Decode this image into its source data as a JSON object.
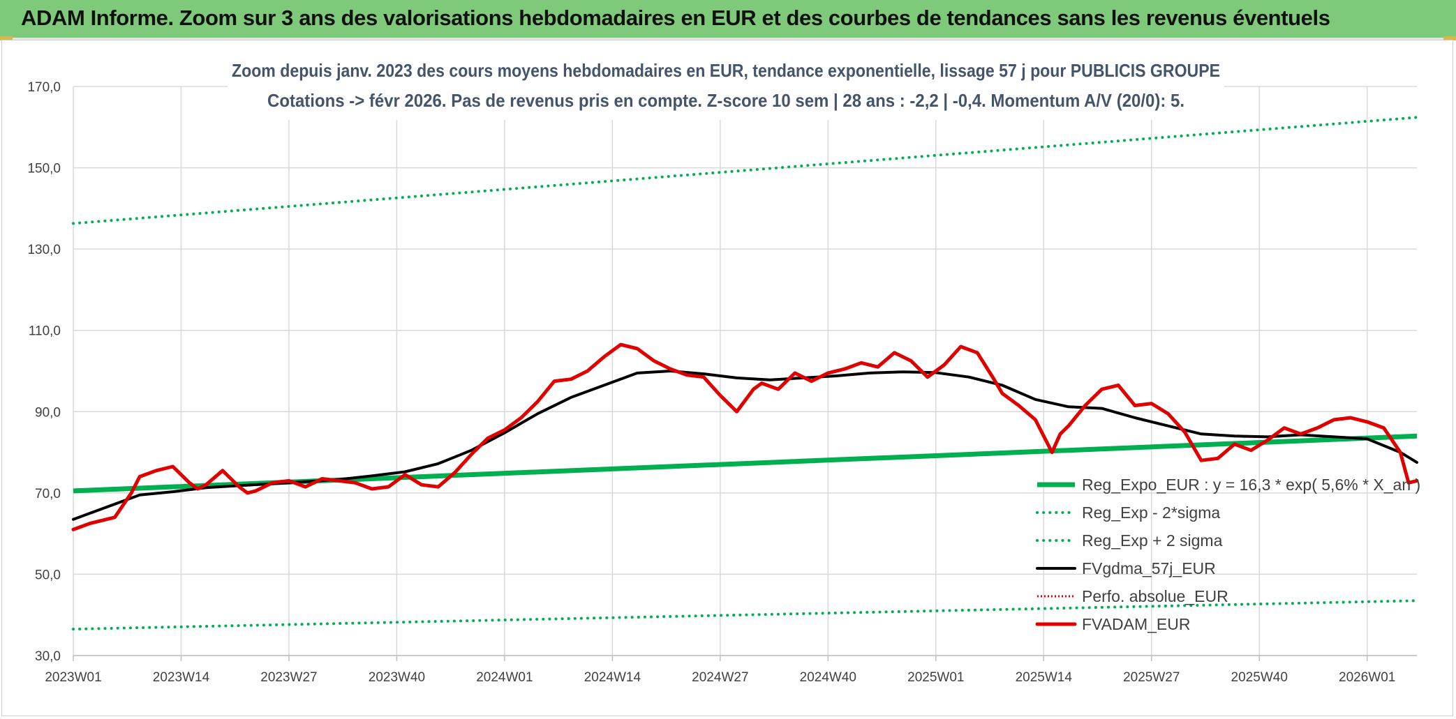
{
  "header": {
    "title": "ADAM Informe. Zoom sur 3 ans des valorisations hebdomadaires en EUR et des courbes de tendances sans les revenus éventuels"
  },
  "colors": {
    "header_bg": "#7fc97a",
    "regression": "#00b050",
    "sigma": "#00b050",
    "gdma": "#000000",
    "perfo": "#e00000",
    "adam": "#e00000",
    "grid": "#d9d9d9",
    "axis_text": "#404040"
  },
  "chart_data": {
    "type": "line",
    "title_line1": "Zoom depuis janv. 2023 des cours moyens hebdomadaires en EUR, tendance exponentielle, lissage 57 j pour PUBLICIS GROUPE",
    "title_line2": "Cotations -> févr 2026. Pas de revenus pris en compte. Z-score 10 sem | 28 ans : -2,2 | -0,4. Momentum A/V (20/0): 5.",
    "xlabel": "",
    "ylabel": "",
    "ylim": [
      30,
      170
    ],
    "yticks": [
      30,
      50,
      70,
      90,
      110,
      130,
      150,
      170
    ],
    "ytick_labels": [
      "30,0",
      "50,0",
      "70,0",
      "90,0",
      "110,0",
      "130,0",
      "150,0",
      "170,0"
    ],
    "xlim": [
      0,
      162
    ],
    "xticks": [
      0,
      13,
      26,
      39,
      52,
      65,
      78,
      91,
      104,
      117,
      130,
      143,
      156
    ],
    "xtick_labels": [
      "2023W01",
      "2023W14",
      "2023W27",
      "2023W40",
      "2024W01",
      "2024W14",
      "2024W27",
      "2024W40",
      "2025W01",
      "2025W14",
      "2025W27",
      "2025W40",
      "2026W01"
    ],
    "grid": true,
    "legend_position": "bottom-right",
    "series": [
      {
        "name": "Reg_Expo_EUR : y = 16,3 * exp( 5,6% *  X_an )",
        "style": "solid-thick",
        "x": [
          0,
          162
        ],
        "values": [
          70.5,
          84.0
        ]
      },
      {
        "name": "Reg_Exp - 2*sigma",
        "style": "dotted",
        "x": [
          0,
          162
        ],
        "values": [
          36.5,
          43.5
        ]
      },
      {
        "name": "Reg_Exp + 2 sigma",
        "style": "dotted",
        "x": [
          0,
          162
        ],
        "values": [
          136.3,
          162.4
        ]
      },
      {
        "name": "FVgdma_57j_EUR",
        "style": "solid",
        "x": [
          0,
          4,
          8,
          12,
          16,
          20,
          26,
          32,
          36,
          40,
          44,
          48,
          52,
          56,
          60,
          64,
          68,
          72,
          76,
          80,
          84,
          88,
          92,
          96,
          100,
          104,
          108,
          112,
          116,
          120,
          124,
          128,
          132,
          136,
          140,
          144,
          148,
          152,
          156,
          160,
          162
        ],
        "values": [
          63.5,
          66.5,
          69.5,
          70.3,
          71.3,
          71.8,
          72.5,
          73.3,
          74.2,
          75.2,
          77.2,
          80.5,
          84.8,
          89.5,
          93.5,
          96.5,
          99.5,
          100.0,
          99.3,
          98.3,
          97.8,
          98.3,
          98.8,
          99.5,
          99.8,
          99.6,
          98.5,
          96.5,
          93.0,
          91.2,
          90.8,
          88.5,
          86.5,
          84.5,
          84.0,
          83.8,
          84.3,
          83.8,
          83.3,
          80.0,
          77.5
        ]
      },
      {
        "name": "Perfo. absolue_EUR",
        "style": "dotted",
        "x": [],
        "values": []
      },
      {
        "name": "FVADAM_EUR",
        "style": "solid-thick",
        "x": [
          0,
          2,
          5,
          7,
          8,
          10,
          12,
          14,
          15,
          16,
          18,
          20,
          21,
          22,
          24,
          26,
          28,
          30,
          32,
          34,
          36,
          38,
          40,
          42,
          44,
          46,
          48,
          50,
          52,
          54,
          56,
          58,
          60,
          62,
          64,
          66,
          68,
          70,
          72,
          74,
          76,
          78,
          80,
          82,
          83,
          85,
          87,
          89,
          91,
          93,
          95,
          97,
          99,
          101,
          103,
          105,
          107,
          109,
          111,
          112,
          114,
          116,
          118,
          119,
          120,
          122,
          124,
          125,
          126,
          128,
          130,
          132,
          134,
          136,
          138,
          140,
          142,
          144,
          146,
          148,
          150,
          152,
          154,
          156,
          158,
          160,
          161,
          162
        ],
        "values": [
          61.0,
          62.5,
          64.0,
          70.0,
          74.0,
          75.5,
          76.5,
          72.5,
          71.0,
          72.0,
          75.5,
          71.5,
          70.0,
          70.5,
          72.5,
          73.0,
          71.5,
          73.5,
          73.0,
          72.5,
          71.0,
          71.5,
          74.5,
          72.0,
          71.5,
          75.0,
          79.5,
          83.5,
          85.5,
          88.5,
          92.5,
          97.5,
          98.0,
          100.0,
          103.5,
          106.5,
          105.5,
          102.5,
          100.5,
          99.0,
          98.5,
          94.0,
          90.0,
          95.5,
          97.0,
          95.5,
          99.5,
          97.5,
          99.5,
          100.5,
          102.0,
          101.0,
          104.5,
          102.5,
          98.5,
          101.5,
          106.0,
          104.5,
          98.0,
          94.5,
          91.5,
          88.0,
          80.0,
          84.5,
          86.5,
          91.5,
          95.5,
          96.0,
          96.5,
          91.5,
          92.0,
          89.5,
          85.0,
          78.0,
          78.5,
          82.0,
          80.5,
          83.0,
          86.0,
          84.5,
          86.0,
          88.0,
          88.5,
          87.5,
          86.0,
          80.0,
          72.5,
          73.0
        ]
      }
    ]
  }
}
